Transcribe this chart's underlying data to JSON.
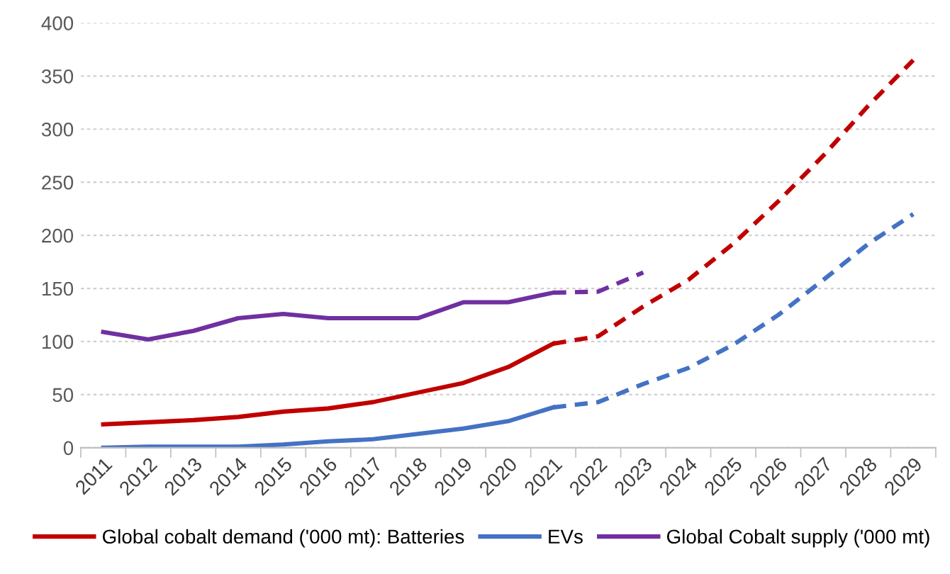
{
  "chart_data": {
    "type": "line",
    "categories": [
      "2011",
      "2012",
      "2013",
      "2014",
      "2015",
      "2016",
      "2017",
      "2018",
      "2019",
      "2020",
      "2021",
      "2022",
      "2023",
      "2024",
      "2025",
      "2026",
      "2027",
      "2028",
      "2029"
    ],
    "series": [
      {
        "name": "Global cobalt demand ('000 mt): Batteries",
        "color": "#c00000",
        "line_style": "solid",
        "values": [
          22,
          24,
          26,
          29,
          34,
          37,
          43,
          52,
          61,
          76,
          98,
          null,
          null,
          null,
          null,
          null,
          null,
          null,
          null
        ]
      },
      {
        "name": "EVs",
        "color": "#4472c4",
        "line_style": "solid",
        "values": [
          0,
          1,
          1,
          1,
          3,
          6,
          8,
          13,
          18,
          25,
          38,
          null,
          null,
          null,
          null,
          null,
          null,
          null,
          null
        ]
      },
      {
        "name": "Global Cobalt supply ('000 mt)",
        "color": "#7030a0",
        "line_style": "solid",
        "values": [
          109,
          102,
          110,
          122,
          126,
          122,
          122,
          122,
          137,
          137,
          146,
          null,
          null,
          null,
          null,
          null,
          null,
          null,
          null
        ]
      },
      {
        "color": "#c00000",
        "line_style": "dashed",
        "values": [
          null,
          null,
          null,
          null,
          null,
          null,
          null,
          null,
          null,
          null,
          98,
          105,
          133,
          158,
          192,
          232,
          275,
          322,
          365
        ]
      },
      {
        "color": "#4472c4",
        "line_style": "dashed",
        "values": [
          null,
          null,
          null,
          null,
          null,
          null,
          null,
          null,
          null,
          null,
          38,
          43,
          60,
          75,
          97,
          125,
          158,
          192,
          220
        ]
      },
      {
        "color": "#7030a0",
        "line_style": "dashed",
        "values": [
          null,
          null,
          null,
          null,
          null,
          null,
          null,
          null,
          null,
          null,
          146,
          147,
          165,
          null,
          null,
          null,
          null,
          null,
          null
        ]
      }
    ],
    "ylim": [
      0,
      400
    ],
    "yticks": [
      0,
      50,
      100,
      150,
      200,
      250,
      300,
      350,
      400
    ],
    "grid": "y",
    "legend": "bottom",
    "marker": "none"
  }
}
